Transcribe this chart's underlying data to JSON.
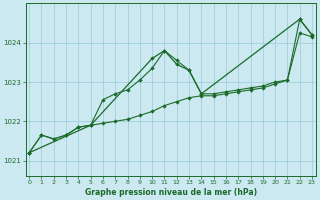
{
  "title": "Graphe pression niveau de la mer (hPa)",
  "background_color": "#cce8f0",
  "grid_color": "#99ccd8",
  "line_color": "#1a6b2a",
  "xlim": [
    -0.3,
    23.3
  ],
  "ylim": [
    1020.6,
    1025.0
  ],
  "yticks": [
    1021,
    1022,
    1023,
    1024
  ],
  "xticks": [
    0,
    1,
    2,
    3,
    4,
    5,
    6,
    7,
    8,
    9,
    10,
    11,
    12,
    13,
    14,
    15,
    16,
    17,
    18,
    19,
    20,
    21,
    22,
    23
  ],
  "series1_x": [
    0,
    1,
    2,
    3,
    4,
    5,
    6,
    7,
    8,
    9,
    10,
    11,
    12,
    13,
    14,
    15,
    16,
    17,
    18,
    19,
    20,
    21,
    22,
    23
  ],
  "series1_y": [
    1021.2,
    1021.65,
    1021.55,
    1021.65,
    1021.85,
    1021.9,
    1021.95,
    1022.0,
    1022.05,
    1022.15,
    1022.25,
    1022.4,
    1022.5,
    1022.6,
    1022.65,
    1022.65,
    1022.7,
    1022.75,
    1022.8,
    1022.85,
    1022.95,
    1023.05,
    1024.25,
    1024.15
  ],
  "series2_x": [
    0,
    1,
    2,
    3,
    4,
    5,
    6,
    7,
    8,
    9,
    10,
    11,
    12,
    13,
    14,
    15,
    16,
    17,
    18,
    19,
    20,
    21,
    22,
    23
  ],
  "series2_y": [
    1021.2,
    1021.65,
    1021.55,
    1021.65,
    1021.85,
    1021.9,
    1022.55,
    1022.7,
    1022.8,
    1023.05,
    1023.35,
    1023.8,
    1023.55,
    1023.3,
    1022.7,
    1022.7,
    1022.75,
    1022.8,
    1022.85,
    1022.9,
    1023.0,
    1023.05,
    1024.6,
    1024.2
  ],
  "series3_x": [
    0,
    5,
    10,
    11,
    12,
    13,
    14,
    22,
    23
  ],
  "series3_y": [
    1021.2,
    1021.9,
    1023.6,
    1023.8,
    1023.45,
    1023.3,
    1022.7,
    1024.6,
    1024.2
  ]
}
